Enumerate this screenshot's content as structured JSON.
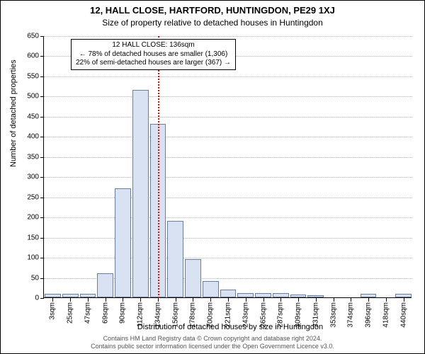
{
  "title": "12, HALL CLOSE, HARTFORD, HUNTINGDON, PE29 1XJ",
  "subtitle": "Size of property relative to detached houses in Huntingdon",
  "ylabel": "Number of detached properties",
  "xlabel": "Distribution of detached houses by size in Huntingdon",
  "footer_line1": "Contains HM Land Registry data © Crown copyright and database right 2024.",
  "footer_line2": "Contains public sector information licensed under the Open Government Licence v3.0.",
  "chart": {
    "type": "histogram",
    "ylim": [
      0,
      650
    ],
    "ytick_step": 50,
    "x_categories": [
      "3sqm",
      "25sqm",
      "47sqm",
      "69sqm",
      "90sqm",
      "112sqm",
      "134sqm",
      "156sqm",
      "178sqm",
      "200sqm",
      "221sqm",
      "243sqm",
      "265sqm",
      "287sqm",
      "309sqm",
      "331sqm",
      "353sqm",
      "374sqm",
      "396sqm",
      "418sqm",
      "440sqm"
    ],
    "values": [
      9,
      9,
      9,
      60,
      270,
      515,
      430,
      190,
      95,
      40,
      20,
      10,
      10,
      10,
      7,
      5,
      0,
      0,
      9,
      0,
      9
    ],
    "bar_fill": "#d8e2f3",
    "bar_stroke": "#6a7fa0",
    "background_color": "#ffffff",
    "grid_color": "#b0b0b0",
    "reference_line": {
      "category_index": 6,
      "color": "#ff0000"
    },
    "label_fontsize": 11,
    "title_fontsize": 13,
    "tick_fontsize": 10
  },
  "annotation": {
    "line1": "12 HALL CLOSE: 136sqm",
    "line2": "← 78% of detached houses are smaller (1,306)",
    "line3": "22% of semi-detached houses are larger (367) →"
  }
}
